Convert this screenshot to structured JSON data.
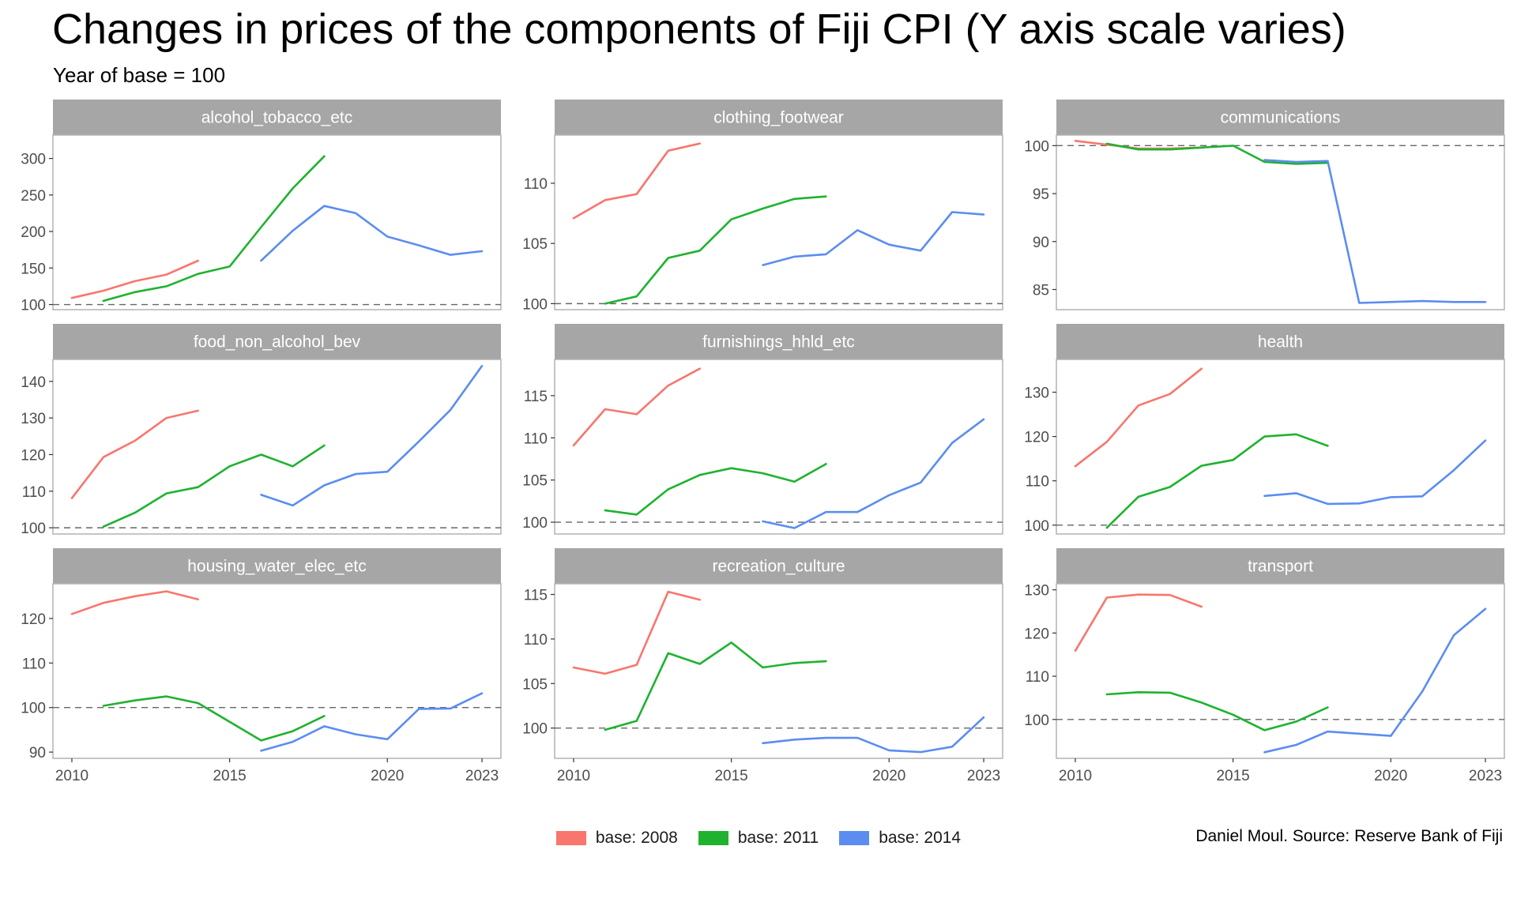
{
  "title": "Changes in prices of the components of Fiji CPI (Y axis scale varies)",
  "subtitle": "Year of base = 100",
  "caption": "Daniel Moul. Source: Reserve Bank of Fiji",
  "colors": {
    "base_2008": "#F8766D",
    "base_2011": "#1FB22F",
    "base_2014": "#5B8DF0",
    "strip_bg": "#A6A6A6",
    "reference_line": "#666666",
    "panel_border": "#B3B3B3"
  },
  "chart_data": {
    "type": "line",
    "facets_layout": "3x3",
    "reference_line": 100,
    "reference_line_style": "dashed",
    "x_ticks": [
      "2010",
      "2015",
      "2020",
      "2023"
    ],
    "xlim": [
      2009.4,
      2023.6
    ],
    "legend": {
      "position": "bottom",
      "entries": [
        "base: 2008",
        "base: 2011",
        "base: 2014"
      ]
    },
    "panels": [
      {
        "name": "alcohol_tobacco_etc",
        "ylim": [
          93,
          332
        ],
        "y_ticks": [
          100,
          150,
          200,
          250,
          300
        ],
        "series": [
          {
            "name": "base: 2008",
            "x": [
              2010,
              2011,
              2012,
              2013,
              2014
            ],
            "y": [
              109,
              119,
              132,
              141,
              160
            ]
          },
          {
            "name": "base: 2011",
            "x": [
              2011,
              2012,
              2013,
              2014,
              2015,
              2016,
              2017,
              2018
            ],
            "y": [
              105,
              117,
              125,
              142,
              152,
              206,
              259,
              303
            ]
          },
          {
            "name": "base: 2014",
            "x": [
              2016,
              2017,
              2018,
              2019,
              2020,
              2021,
              2022,
              2023
            ],
            "y": [
              160,
              201,
              235,
              225,
              193,
              181,
              168,
              173
            ]
          }
        ]
      },
      {
        "name": "clothing_footwear",
        "ylim": [
          99.5,
          114.0
        ],
        "y_ticks": [
          100,
          105,
          110
        ],
        "series": [
          {
            "name": "base: 2008",
            "x": [
              2010,
              2011,
              2012,
              2013,
              2014
            ],
            "y": [
              107.1,
              108.6,
              109.1,
              112.7,
              113.3
            ]
          },
          {
            "name": "base: 2011",
            "x": [
              2011,
              2012,
              2013,
              2014,
              2015,
              2016,
              2017,
              2018
            ],
            "y": [
              100.0,
              100.6,
              103.8,
              104.4,
              107.0,
              107.9,
              108.7,
              108.9
            ]
          },
          {
            "name": "base: 2014",
            "x": [
              2016,
              2017,
              2018,
              2019,
              2020,
              2021,
              2022,
              2023
            ],
            "y": [
              103.2,
              103.9,
              104.1,
              106.1,
              104.9,
              104.4,
              107.6,
              107.4
            ]
          }
        ]
      },
      {
        "name": "communications",
        "ylim": [
          82.9,
          101.1
        ],
        "y_ticks": [
          85,
          90,
          95,
          100
        ],
        "series": [
          {
            "name": "base: 2008",
            "x": [
              2010,
              2011,
              2012,
              2013,
              2014
            ],
            "y": [
              100.5,
              100.1,
              99.7,
              99.7,
              99.8
            ]
          },
          {
            "name": "base: 2011",
            "x": [
              2011,
              2012,
              2013,
              2014,
              2015,
              2016,
              2017,
              2018
            ],
            "y": [
              100.2,
              99.6,
              99.6,
              99.8,
              100.0,
              98.3,
              98.1,
              98.2
            ]
          },
          {
            "name": "base: 2014",
            "x": [
              2016,
              2017,
              2018,
              2019,
              2020,
              2021,
              2022,
              2023
            ],
            "y": [
              98.5,
              98.3,
              98.4,
              83.6,
              83.7,
              83.8,
              83.7,
              83.7
            ]
          }
        ]
      },
      {
        "name": "food_non_alcohol_bev",
        "ylim": [
          98.3,
          146.0
        ],
        "y_ticks": [
          100,
          110,
          120,
          130,
          140
        ],
        "series": [
          {
            "name": "base: 2008",
            "x": [
              2010,
              2011,
              2012,
              2013,
              2014
            ],
            "y": [
              108.1,
              119.3,
              123.8,
              130.0,
              132.0
            ]
          },
          {
            "name": "base: 2011",
            "x": [
              2011,
              2012,
              2013,
              2014,
              2015,
              2016,
              2017,
              2018
            ],
            "y": [
              100.3,
              104.1,
              109.4,
              111.1,
              116.8,
              120.0,
              116.8,
              122.5
            ]
          },
          {
            "name": "base: 2014",
            "x": [
              2016,
              2017,
              2018,
              2019,
              2020,
              2021,
              2022,
              2023
            ],
            "y": [
              109.0,
              106.1,
              111.6,
              114.7,
              115.3,
              123.6,
              132.2,
              144.2
            ]
          }
        ]
      },
      {
        "name": "furnishings_hhld_etc",
        "ylim": [
          98.6,
          119.3
        ],
        "y_ticks": [
          100,
          105,
          110,
          115
        ],
        "series": [
          {
            "name": "base: 2008",
            "x": [
              2010,
              2011,
              2012,
              2013,
              2014
            ],
            "y": [
              109.1,
              113.4,
              112.8,
              116.2,
              118.2
            ]
          },
          {
            "name": "base: 2011",
            "x": [
              2011,
              2012,
              2013,
              2014,
              2015,
              2016,
              2017,
              2018
            ],
            "y": [
              101.4,
              100.9,
              103.9,
              105.6,
              106.4,
              105.8,
              104.8,
              106.9
            ]
          },
          {
            "name": "base: 2014",
            "x": [
              2016,
              2017,
              2018,
              2019,
              2020,
              2021,
              2022,
              2023
            ],
            "y": [
              100.1,
              99.3,
              101.2,
              101.2,
              103.2,
              104.7,
              109.4,
              112.2
            ]
          }
        ]
      },
      {
        "name": "health",
        "ylim": [
          98.0,
          137.4
        ],
        "y_ticks": [
          100,
          110,
          120,
          130
        ],
        "series": [
          {
            "name": "base: 2008",
            "x": [
              2010,
              2011,
              2012,
              2013,
              2014
            ],
            "y": [
              113.3,
              118.8,
              127.0,
              129.6,
              135.3
            ]
          },
          {
            "name": "base: 2011",
            "x": [
              2011,
              2012,
              2013,
              2014,
              2015,
              2016,
              2017,
              2018
            ],
            "y": [
              99.4,
              106.4,
              108.6,
              113.4,
              114.7,
              120.0,
              120.5,
              117.9
            ]
          },
          {
            "name": "base: 2014",
            "x": [
              2016,
              2017,
              2018,
              2019,
              2020,
              2021,
              2022,
              2023
            ],
            "y": [
              106.6,
              107.2,
              104.8,
              104.9,
              106.3,
              106.5,
              112.4,
              119.1
            ]
          }
        ]
      },
      {
        "name": "housing_water_elec_etc",
        "ylim": [
          88.6,
          127.8
        ],
        "y_ticks": [
          90,
          100,
          110,
          120
        ],
        "series": [
          {
            "name": "base: 2008",
            "x": [
              2010,
              2011,
              2012,
              2013,
              2014
            ],
            "y": [
              121.0,
              123.5,
              125.0,
              126.1,
              124.3
            ]
          },
          {
            "name": "base: 2011",
            "x": [
              2011,
              2012,
              2013,
              2014,
              2015,
              2016,
              2017,
              2018
            ],
            "y": [
              100.4,
              101.6,
              102.5,
              101.0,
              96.8,
              92.6,
              94.7,
              98.1
            ]
          },
          {
            "name": "base: 2014",
            "x": [
              2016,
              2017,
              2018,
              2019,
              2020,
              2021,
              2022,
              2023
            ],
            "y": [
              90.3,
              92.3,
              95.8,
              94.0,
              92.9,
              99.7,
              99.8,
              103.2
            ]
          }
        ]
      },
      {
        "name": "recreation_culture",
        "ylim": [
          96.6,
          116.2
        ],
        "y_ticks": [
          100,
          105,
          110,
          115
        ],
        "series": [
          {
            "name": "base: 2008",
            "x": [
              2010,
              2011,
              2012,
              2013,
              2014
            ],
            "y": [
              106.8,
              106.1,
              107.1,
              115.3,
              114.4
            ]
          },
          {
            "name": "base: 2011",
            "x": [
              2011,
              2012,
              2013,
              2014,
              2015,
              2016,
              2017,
              2018
            ],
            "y": [
              99.8,
              100.8,
              108.4,
              107.2,
              109.6,
              106.8,
              107.3,
              107.5
            ]
          },
          {
            "name": "base: 2014",
            "x": [
              2016,
              2017,
              2018,
              2019,
              2020,
              2021,
              2022,
              2023
            ],
            "y": [
              98.3,
              98.7,
              98.9,
              98.9,
              97.5,
              97.3,
              97.9,
              101.2
            ]
          }
        ]
      },
      {
        "name": "transport",
        "ylim": [
          91.0,
          131.4
        ],
        "y_ticks": [
          100,
          110,
          120,
          130
        ],
        "series": [
          {
            "name": "base: 2008",
            "x": [
              2010,
              2011,
              2012,
              2013,
              2014
            ],
            "y": [
              115.9,
              128.2,
              128.9,
              128.8,
              126.1
            ]
          },
          {
            "name": "base: 2011",
            "x": [
              2011,
              2012,
              2013,
              2014,
              2015,
              2016,
              2017,
              2018
            ],
            "y": [
              105.8,
              106.3,
              106.2,
              103.9,
              101.1,
              97.5,
              99.5,
              102.8
            ]
          },
          {
            "name": "base: 2014",
            "x": [
              2016,
              2017,
              2018,
              2019,
              2020,
              2021,
              2022,
              2023
            ],
            "y": [
              92.4,
              94.1,
              97.2,
              96.7,
              96.2,
              106.5,
              119.5,
              125.6
            ]
          }
        ]
      }
    ]
  }
}
